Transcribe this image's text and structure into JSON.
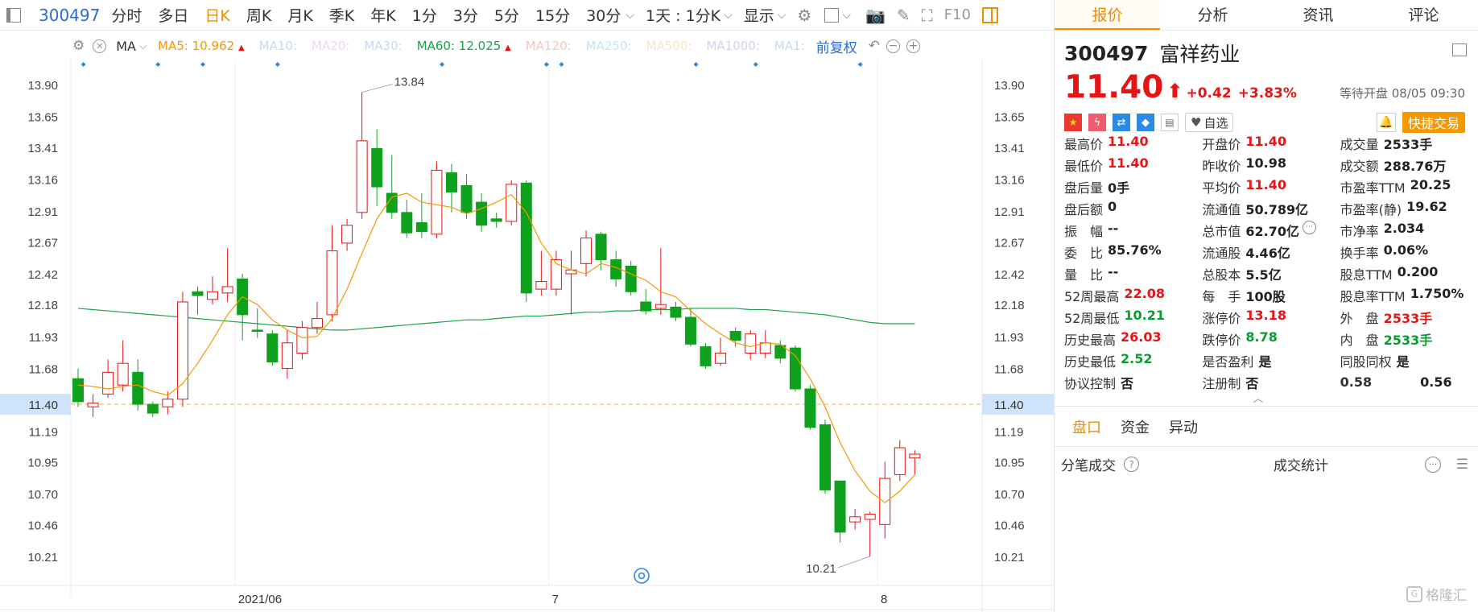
{
  "toolbar": {
    "code": "300497",
    "periods": [
      "分时",
      "多日",
      "日K",
      "周K",
      "月K",
      "季K",
      "年K",
      "1分",
      "3分",
      "5分",
      "15分",
      "30分"
    ],
    "active_period": "日K",
    "range_select": "1天 : 1分K",
    "display_label": "显示",
    "f10_label": "F10"
  },
  "ma_bar": {
    "type_label": "MA",
    "ma5": "MA5: 10.962",
    "ma10": "MA10:",
    "ma20": "MA20:",
    "ma30": "MA30:",
    "ma60": "MA60: 12.025",
    "ma120": "MA120:",
    "ma250": "MA250:",
    "ma500": "MA500:",
    "ma1000": "MA1000:",
    "ma1": "MA1:",
    "adjust_label": "前复权",
    "colors": {
      "ma5": "#f39800",
      "ma60": "#1aa346",
      "faded": "#c8d8f2"
    }
  },
  "chart_data": {
    "type": "candlestick",
    "y_ticks": [
      "13.90",
      "13.65",
      "13.41",
      "13.16",
      "12.91",
      "12.67",
      "12.42",
      "12.18",
      "11.93",
      "11.68",
      "11.40",
      "11.19",
      "10.95",
      "10.70",
      "10.46",
      "10.21"
    ],
    "ylim": [
      10.0,
      14.1
    ],
    "x_labels": [
      {
        "index": 11,
        "label": "2021/06"
      },
      {
        "index": 32,
        "label": "7"
      },
      {
        "index": 54,
        "label": "8"
      }
    ],
    "current_price": 11.4,
    "max_label": "13.84",
    "min_label": "10.21",
    "candles": [
      {
        "o": 11.6,
        "c": 11.42,
        "h": 11.68,
        "l": 11.38
      },
      {
        "o": 11.38,
        "c": 11.41,
        "h": 11.48,
        "l": 11.3
      },
      {
        "o": 11.48,
        "c": 11.65,
        "h": 11.75,
        "l": 11.45
      },
      {
        "o": 11.55,
        "c": 11.72,
        "h": 11.9,
        "l": 11.5
      },
      {
        "o": 11.65,
        "c": 11.4,
        "h": 11.75,
        "l": 11.35
      },
      {
        "o": 11.4,
        "c": 11.33,
        "h": 11.42,
        "l": 11.3
      },
      {
        "o": 11.38,
        "c": 11.44,
        "h": 11.5,
        "l": 11.32
      },
      {
        "o": 11.44,
        "c": 12.2,
        "h": 12.28,
        "l": 11.38
      },
      {
        "o": 12.28,
        "c": 12.25,
        "h": 12.32,
        "l": 12.1
      },
      {
        "o": 12.22,
        "c": 12.28,
        "h": 12.4,
        "l": 12.18
      },
      {
        "o": 12.27,
        "c": 12.32,
        "h": 12.62,
        "l": 12.2
      },
      {
        "o": 12.38,
        "c": 12.1,
        "h": 12.42,
        "l": 11.9
      },
      {
        "o": 11.98,
        "c": 11.97,
        "h": 12.15,
        "l": 11.92
      },
      {
        "o": 11.95,
        "c": 11.73,
        "h": 11.98,
        "l": 11.7
      },
      {
        "o": 11.68,
        "c": 11.88,
        "h": 11.98,
        "l": 11.6
      },
      {
        "o": 11.8,
        "c": 12.0,
        "h": 12.05,
        "l": 11.75
      },
      {
        "o": 12.0,
        "c": 12.07,
        "h": 12.2,
        "l": 11.95
      },
      {
        "o": 12.1,
        "c": 12.6,
        "h": 12.8,
        "l": 12.05
      },
      {
        "o": 12.66,
        "c": 12.8,
        "h": 12.85,
        "l": 12.6
      },
      {
        "o": 12.9,
        "c": 13.46,
        "h": 13.84,
        "l": 12.85
      },
      {
        "o": 13.4,
        "c": 13.1,
        "h": 13.55,
        "l": 12.95
      },
      {
        "o": 13.05,
        "c": 12.9,
        "h": 13.35,
        "l": 12.85
      },
      {
        "o": 12.9,
        "c": 12.74,
        "h": 13.0,
        "l": 12.7
      },
      {
        "o": 12.82,
        "c": 12.75,
        "h": 13.05,
        "l": 12.7
      },
      {
        "o": 12.73,
        "c": 13.23,
        "h": 13.3,
        "l": 12.7
      },
      {
        "o": 13.21,
        "c": 13.06,
        "h": 13.28,
        "l": 12.9
      },
      {
        "o": 13.11,
        "c": 12.9,
        "h": 13.2,
        "l": 12.85
      },
      {
        "o": 12.98,
        "c": 12.8,
        "h": 13.05,
        "l": 12.75
      },
      {
        "o": 12.85,
        "c": 12.83,
        "h": 12.9,
        "l": 12.78
      },
      {
        "o": 12.83,
        "c": 13.12,
        "h": 13.15,
        "l": 12.8
      },
      {
        "o": 13.13,
        "c": 12.27,
        "h": 13.15,
        "l": 12.2
      },
      {
        "o": 12.3,
        "c": 12.36,
        "h": 12.6,
        "l": 12.25
      },
      {
        "o": 12.3,
        "c": 12.53,
        "h": 12.6,
        "l": 12.25
      },
      {
        "o": 12.42,
        "c": 12.45,
        "h": 12.6,
        "l": 12.1
      },
      {
        "o": 12.5,
        "c": 12.7,
        "h": 12.76,
        "l": 12.4
      },
      {
        "o": 12.73,
        "c": 12.53,
        "h": 12.75,
        "l": 12.45
      },
      {
        "o": 12.53,
        "c": 12.38,
        "h": 12.6,
        "l": 12.32
      },
      {
        "o": 12.48,
        "c": 12.28,
        "h": 12.52,
        "l": 12.25
      },
      {
        "o": 12.2,
        "c": 12.13,
        "h": 12.3,
        "l": 12.1
      },
      {
        "o": 12.15,
        "c": 12.18,
        "h": 12.62,
        "l": 12.1
      },
      {
        "o": 12.16,
        "c": 12.08,
        "h": 12.2,
        "l": 12.05
      },
      {
        "o": 12.08,
        "c": 11.87,
        "h": 12.15,
        "l": 11.85
      },
      {
        "o": 11.85,
        "c": 11.7,
        "h": 11.88,
        "l": 11.68
      },
      {
        "o": 11.72,
        "c": 11.8,
        "h": 11.92,
        "l": 11.7
      },
      {
        "o": 11.97,
        "c": 11.9,
        "h": 12.0,
        "l": 11.85
      },
      {
        "o": 11.8,
        "c": 11.95,
        "h": 11.98,
        "l": 11.75
      },
      {
        "o": 11.8,
        "c": 11.88,
        "h": 11.98,
        "l": 11.76
      },
      {
        "o": 11.86,
        "c": 11.76,
        "h": 11.9,
        "l": 11.72
      },
      {
        "o": 11.84,
        "c": 11.52,
        "h": 11.86,
        "l": 11.5
      },
      {
        "o": 11.52,
        "c": 11.22,
        "h": 11.55,
        "l": 11.2
      },
      {
        "o": 11.24,
        "c": 10.73,
        "h": 11.28,
        "l": 10.7
      },
      {
        "o": 10.8,
        "c": 10.4,
        "h": 10.8,
        "l": 10.32
      },
      {
        "o": 10.48,
        "c": 10.52,
        "h": 10.58,
        "l": 10.42
      },
      {
        "o": 10.5,
        "c": 10.54,
        "h": 10.56,
        "l": 10.21
      },
      {
        "o": 10.46,
        "c": 10.82,
        "h": 10.95,
        "l": 10.35
      },
      {
        "o": 10.85,
        "c": 11.06,
        "h": 11.12,
        "l": 10.8
      },
      {
        "o": 10.98,
        "c": 11.01,
        "h": 11.04,
        "l": 10.85
      }
    ],
    "ma5_line": [
      11.55,
      11.54,
      11.52,
      11.54,
      11.55,
      11.5,
      11.47,
      11.56,
      11.72,
      11.9,
      12.1,
      12.24,
      12.18,
      12.06,
      11.98,
      11.92,
      11.93,
      12.07,
      12.3,
      12.58,
      12.85,
      13.02,
      13.05,
      12.98,
      12.96,
      12.94,
      12.89,
      12.93,
      12.98,
      13.04,
      12.9,
      12.66,
      12.5,
      12.45,
      12.42,
      12.5,
      12.47,
      12.42,
      12.37,
      12.28,
      12.24,
      12.13,
      12.03,
      11.95,
      11.88,
      11.85,
      11.88,
      11.87,
      11.78,
      11.6,
      11.38,
      11.1,
      10.88,
      10.72,
      10.63,
      10.72,
      10.85
    ],
    "ma60_line": [
      12.15,
      12.14,
      12.13,
      12.12,
      12.11,
      12.1,
      12.09,
      12.08,
      12.07,
      12.06,
      12.05,
      12.04,
      12.03,
      12.02,
      12.01,
      12.0,
      11.99,
      11.98,
      11.98,
      11.99,
      12.0,
      12.01,
      12.02,
      12.03,
      12.04,
      12.05,
      12.06,
      12.06,
      12.07,
      12.08,
      12.09,
      12.09,
      12.1,
      12.11,
      12.12,
      12.12,
      12.13,
      12.13,
      12.14,
      12.14,
      12.14,
      12.15,
      12.15,
      12.15,
      12.15,
      12.14,
      12.14,
      12.13,
      12.12,
      12.11,
      12.1,
      12.08,
      12.06,
      12.04,
      12.03,
      12.03,
      12.03
    ],
    "colors": {
      "up": "#e61414",
      "down": "#0ea11d",
      "ma5": "#f39800",
      "ma60": "#1aa346"
    }
  },
  "quote": {
    "code": "300497",
    "name": "富祥药业",
    "price": "11.40",
    "change": "+0.42",
    "change_pct": "+3.83%",
    "status": "等待开盘 08/05 09:30",
    "watch_label": "自选",
    "trade_label": "快捷交易"
  },
  "right_tabs": [
    "报价",
    "分析",
    "资讯",
    "评论"
  ],
  "stats": [
    [
      {
        "label": "最高价",
        "value": "11.40",
        "color": "red"
      },
      {
        "label": "开盘价",
        "value": "11.40",
        "color": "red"
      },
      {
        "label": "成交量",
        "value": "2533手",
        "color": "dark"
      }
    ],
    [
      {
        "label": "最低价",
        "value": "11.40",
        "color": "red"
      },
      {
        "label": "昨收价",
        "value": "10.98",
        "color": "dark"
      },
      {
        "label": "成交额",
        "value": "288.76万",
        "color": "dark"
      }
    ],
    [
      {
        "label": "盘后量",
        "value": "0手",
        "color": "dark"
      },
      {
        "label": "平均价",
        "value": "11.40",
        "color": "red"
      },
      {
        "label": "市盈率TTM",
        "value": "20.25",
        "color": "dark"
      }
    ],
    [
      {
        "label": "盘后额",
        "value": "0",
        "color": "dark"
      },
      {
        "label": "流通值",
        "value": "50.789亿",
        "color": "dark"
      },
      {
        "label": "市盈率(静)",
        "value": "19.62",
        "color": "dark"
      }
    ],
    [
      {
        "label": "振　幅",
        "value": "--",
        "color": "dark"
      },
      {
        "label": "总市值",
        "value": "62.70亿",
        "color": "dark"
      },
      {
        "label": "市净率",
        "value": "2.034",
        "color": "dark"
      }
    ],
    [
      {
        "label": "委　比",
        "value": "85.76%",
        "color": "dark"
      },
      {
        "label": "流通股",
        "value": "4.46亿",
        "color": "dark"
      },
      {
        "label": "换手率",
        "value": "0.06%",
        "color": "dark"
      }
    ],
    [
      {
        "label": "量　比",
        "value": "--",
        "color": "dark"
      },
      {
        "label": "总股本",
        "value": "5.5亿",
        "color": "dark"
      },
      {
        "label": "股息TTM",
        "value": "0.200",
        "color": "dark"
      }
    ],
    [
      {
        "label": "52周最高",
        "value": "22.08",
        "color": "red"
      },
      {
        "label": "每　手",
        "value": "100股",
        "color": "dark"
      },
      {
        "label": "股息率TTM",
        "value": "1.750%",
        "color": "dark"
      }
    ],
    [
      {
        "label": "52周最低",
        "value": "10.21",
        "color": "green"
      },
      {
        "label": "涨停价",
        "value": "13.18",
        "color": "red"
      },
      {
        "label": "外　盘",
        "value": "2533手",
        "color": "red"
      }
    ],
    [
      {
        "label": "历史最高",
        "value": "26.03",
        "color": "red"
      },
      {
        "label": "跌停价",
        "value": "8.78",
        "color": "green"
      },
      {
        "label": "内　盘",
        "value": "2533手",
        "color": "green"
      }
    ],
    [
      {
        "label": "历史最低",
        "value": "2.52",
        "color": "green"
      },
      {
        "label": "是否盈利",
        "value": "是",
        "color": "dark"
      },
      {
        "label": "同股同权",
        "value": "是",
        "color": "dark"
      }
    ],
    [
      {
        "label": "协议控制",
        "value": "否",
        "color": "dark"
      },
      {
        "label": "注册制",
        "value": "否",
        "color": "dark"
      },
      {
        "label": "0.58",
        "value": "0.56",
        "color": "dark"
      }
    ]
  ],
  "bottom_tabs": [
    "盘口",
    "资金",
    "异动"
  ],
  "bottom_section": {
    "left_label": "分笔成交",
    "center_label": "成交统计"
  },
  "watermark": "格隆汇"
}
